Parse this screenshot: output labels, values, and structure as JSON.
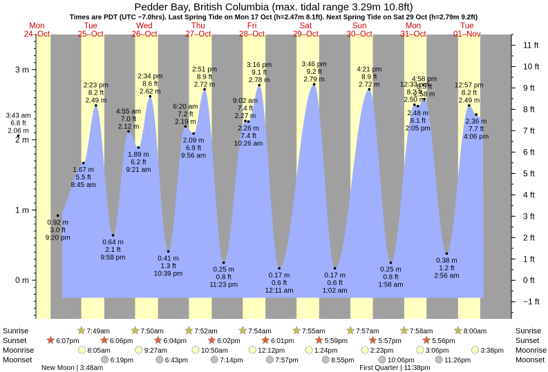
{
  "chart_data": {
    "type": "area",
    "title": "Pedder Bay, British Columbia (max. tidal range 3.29m 10.8ft)",
    "subtitle": "Times are PDT (UTC −7.0hrs). Last Spring Tide on Mon 17 Oct (h=2.47m 8.1ft). Next Spring Tide on Sat 29 Oct (h=2.79m 9.2ft)",
    "ylim_m": [
      -0.55,
      3.5
    ],
    "ylim_ft": [
      -1.8,
      11.5
    ],
    "y_ticks_m": [
      {
        "v": 0,
        "label": "0 m"
      },
      {
        "v": 1,
        "label": "1 m"
      },
      {
        "v": 2,
        "label": "2 m"
      },
      {
        "v": 3,
        "label": "3 m"
      }
    ],
    "y_ticks_ft": [
      "−1 ft",
      "0 ft",
      "1 ft",
      "2 ft",
      "3 ft",
      "4 ft",
      "5 ft",
      "6 ft",
      "7 ft",
      "8 ft",
      "9 ft",
      "10 ft",
      "11 ft"
    ],
    "days": [
      {
        "dow": "Mon",
        "date": "24–Oct"
      },
      {
        "dow": "Tue",
        "date": "25–Oct"
      },
      {
        "dow": "Wed",
        "date": "26–Oct"
      },
      {
        "dow": "Thu",
        "date": "27–Oct"
      },
      {
        "dow": "Fri",
        "date": "28–Oct"
      },
      {
        "dow": "Sat",
        "date": "29–Oct"
      },
      {
        "dow": "Sun",
        "date": "30–Oct"
      },
      {
        "dow": "Mon",
        "date": "31–Oct"
      },
      {
        "dow": "Tue",
        "date": "01–Nov"
      }
    ],
    "tides": [
      {
        "day": 0,
        "time": "3:43 am",
        "m": "2.06 m",
        "ft": "6.8 ft",
        "h": 2.06,
        "type": "high"
      },
      {
        "day": 0,
        "time": "9:20 pm",
        "m": "0.92 m",
        "ft": "3.0 ft",
        "h": 0.92,
        "type": "low"
      },
      {
        "day": 1,
        "time": "8:45 am",
        "m": "1.67 m",
        "ft": "5.5 ft",
        "h": 1.67,
        "type": "low"
      },
      {
        "day": 1,
        "time": "2:23 pm",
        "m": "2.49 m",
        "ft": "8.2 ft",
        "h": 2.49,
        "type": "high"
      },
      {
        "day": 1,
        "time": "9:58 pm",
        "m": "0.64 m",
        "ft": "2.1 ft",
        "h": 0.64,
        "type": "low"
      },
      {
        "day": 2,
        "time": "4:55 am",
        "m": "2.12 m",
        "ft": "7.0 ft",
        "h": 2.12,
        "type": "high"
      },
      {
        "day": 2,
        "time": "9:21 am",
        "m": "1.89 m",
        "ft": "6.2 ft",
        "h": 1.89,
        "type": "low"
      },
      {
        "day": 2,
        "time": "2:34 pm",
        "m": "2.62 m",
        "ft": "8.6 ft",
        "h": 2.62,
        "type": "high"
      },
      {
        "day": 2,
        "time": "10:39 pm",
        "m": "0.41 m",
        "ft": "1.3 ft",
        "h": 0.41,
        "type": "low"
      },
      {
        "day": 3,
        "time": "6:20 am",
        "m": "2.19 m",
        "ft": "7.2 ft",
        "h": 2.19,
        "type": "high"
      },
      {
        "day": 3,
        "time": "9:56 am",
        "m": "2.09 m",
        "ft": "6.9 ft",
        "h": 2.09,
        "type": "low"
      },
      {
        "day": 3,
        "time": "2:51 pm",
        "m": "2.72 m",
        "ft": "8.9 ft",
        "h": 2.72,
        "type": "high"
      },
      {
        "day": 3,
        "time": "11:23 pm",
        "m": "0.25 m",
        "ft": "0.8 ft",
        "h": 0.25,
        "type": "low"
      },
      {
        "day": 4,
        "time": "9:02 am",
        "m": "2.27 m",
        "ft": "7.4 ft",
        "h": 2.27,
        "type": "high"
      },
      {
        "day": 4,
        "time": "10:26 am",
        "m": "2.26 m",
        "ft": "7.4 ft",
        "h": 2.26,
        "type": "low"
      },
      {
        "day": 4,
        "time": "3:16 pm",
        "m": "2.78 m",
        "ft": "9.1 ft",
        "h": 2.78,
        "type": "high"
      },
      {
        "day": 5,
        "time": "12:11 am",
        "m": "0.17 m",
        "ft": "0.6 ft",
        "h": 0.17,
        "type": "low"
      },
      {
        "day": 5,
        "time": "3:46 pm",
        "m": "2.79 m",
        "ft": "9.2 ft",
        "h": 2.79,
        "type": "high"
      },
      {
        "day": 6,
        "time": "1:02 am",
        "m": "0.17 m",
        "ft": "0.6 ft",
        "h": 0.17,
        "type": "low"
      },
      {
        "day": 6,
        "time": "4:21 pm",
        "m": "2.72 m",
        "ft": "8.9 ft",
        "h": 2.72,
        "type": "high"
      },
      {
        "day": 7,
        "time": "1:58 am",
        "m": "0.25 m",
        "ft": "0.8 ft",
        "h": 0.25,
        "type": "low"
      },
      {
        "day": 7,
        "time": "12:33 pm",
        "m": "2.50 m",
        "ft": "8.2 ft",
        "h": 2.5,
        "type": "high"
      },
      {
        "day": 7,
        "time": "2:05 pm",
        "m": "2.48 m",
        "ft": "8.1 ft",
        "h": 2.48,
        "type": "low"
      },
      {
        "day": 7,
        "time": "4:58 pm",
        "m": "2.58 m",
        "ft": "8.5 ft",
        "h": 2.58,
        "type": "high"
      },
      {
        "day": 8,
        "time": "2:56 am",
        "m": "0.38 m",
        "ft": "1.2 ft",
        "h": 0.38,
        "type": "low"
      },
      {
        "day": 8,
        "time": "12:57 pm",
        "m": "2.49 m",
        "ft": "8.2 ft",
        "h": 2.49,
        "type": "high"
      },
      {
        "day": 8,
        "time": "4:06 pm",
        "m": "2.36 m",
        "ft": "7.7 ft",
        "h": 2.36,
        "type": "low"
      }
    ],
    "row_labels": [
      "Sunrise",
      "Sunset",
      "Moonrise",
      "Moonset"
    ],
    "sunrise": [
      {
        "day": 1,
        "time": "7:49am"
      },
      {
        "day": 2,
        "time": "7:50am"
      },
      {
        "day": 3,
        "time": "7:52am"
      },
      {
        "day": 4,
        "time": "7:54am"
      },
      {
        "day": 5,
        "time": "7:55am"
      },
      {
        "day": 6,
        "time": "7:57am"
      },
      {
        "day": 7,
        "time": "7:58am"
      },
      {
        "day": 8,
        "time": "8:00am"
      }
    ],
    "sunset": [
      {
        "day": 0,
        "time": "6:07pm"
      },
      {
        "day": 1,
        "time": "6:06pm"
      },
      {
        "day": 2,
        "time": "6:04pm"
      },
      {
        "day": 3,
        "time": "6:02pm"
      },
      {
        "day": 4,
        "time": "6:01pm"
      },
      {
        "day": 5,
        "time": "5:59pm"
      },
      {
        "day": 6,
        "time": "5:57pm"
      },
      {
        "day": 7,
        "time": "5:56pm"
      }
    ],
    "moonrise": [
      {
        "day": 1,
        "time": "8:05am"
      },
      {
        "day": 2,
        "time": "9:27am"
      },
      {
        "day": 3,
        "time": "10:50am"
      },
      {
        "day": 4,
        "time": "12:12pm"
      },
      {
        "day": 5,
        "time": "1:24pm"
      },
      {
        "day": 6,
        "time": "2:23pm"
      },
      {
        "day": 7,
        "time": "3:06pm"
      },
      {
        "day": 8,
        "time": "3:38pm"
      }
    ],
    "moonset": [
      {
        "day": 1,
        "time": "6:19pm"
      },
      {
        "day": 2,
        "time": "6:43pm"
      },
      {
        "day": 3,
        "time": "7:14pm"
      },
      {
        "day": 4,
        "time": "7:57pm"
      },
      {
        "day": 5,
        "time": "8:55pm"
      },
      {
        "day": 6,
        "time": "10:06pm"
      },
      {
        "day": 7,
        "time": "11:26pm"
      }
    ],
    "moon_phases": [
      {
        "day": 1,
        "text": "New Moon | 3:48am"
      },
      {
        "day": 7,
        "text": "First Quarter | 11:38pm"
      }
    ],
    "colors": {
      "day": "#ffffc0",
      "night": "#a0a0a0",
      "water": "#a0b0ff",
      "date_text": "#cc0000",
      "sun_icon": "#c8c040",
      "sunset_icon": "#e06030",
      "moonrise_icon": "#ffffc0",
      "moonset_icon": "#c0c0c0"
    }
  }
}
